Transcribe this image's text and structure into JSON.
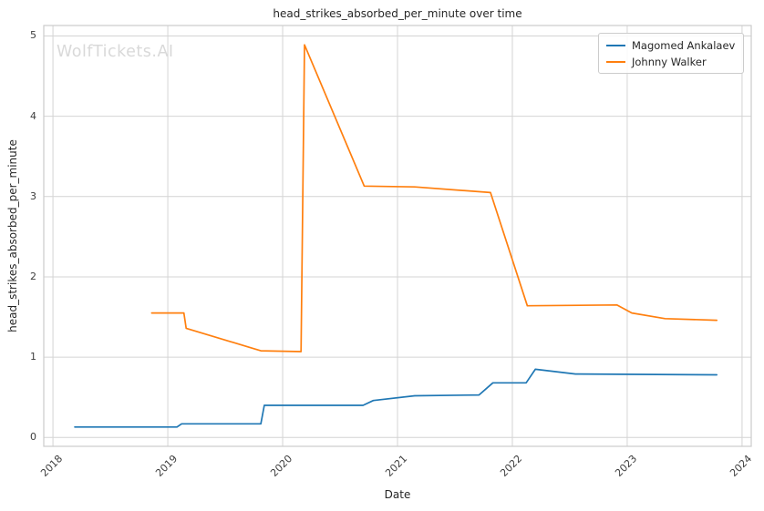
{
  "watermark": "WolfTickets.AI",
  "colors": {
    "grid": "#d4d4d4",
    "spine": "#cccccc",
    "title_text": "#262626",
    "tick_text": "#3d3d3d",
    "watermark_text": "#d9d9d9",
    "legend_border": "#cccccc"
  },
  "chart_data": {
    "type": "line",
    "title": "head_strikes_absorbed_per_minute over time",
    "xlabel": "Date",
    "ylabel": "head_strikes_absorbed_per_minute",
    "x_ticks": [
      2018,
      2019,
      2020,
      2021,
      2022,
      2023,
      2024
    ],
    "x_tick_labels": [
      "2018",
      "2019",
      "2020",
      "2021",
      "2022",
      "2023",
      "2024"
    ],
    "y_ticks": [
      0,
      1,
      2,
      3,
      4,
      5
    ],
    "y_tick_labels": [
      "0",
      "1",
      "2",
      "3",
      "4",
      "5"
    ],
    "xlim": [
      2017.92,
      2024.08
    ],
    "ylim": [
      -0.11,
      5.13
    ],
    "grid": true,
    "legend_position": "upper right",
    "series": [
      {
        "name": "Magomed Ankalaev",
        "color": "#1f77b4",
        "x": [
          2018.19,
          2019.08,
          2019.12,
          2019.81,
          2019.84,
          2020.7,
          2020.79,
          2021.15,
          2021.71,
          2021.83,
          2022.12,
          2022.2,
          2022.55,
          2023.78
        ],
        "y": [
          0.13,
          0.13,
          0.17,
          0.17,
          0.4,
          0.4,
          0.46,
          0.52,
          0.53,
          0.68,
          0.68,
          0.85,
          0.79,
          0.78
        ]
      },
      {
        "name": "Johnny Walker",
        "color": "#ff7f0e",
        "x": [
          2018.86,
          2019.14,
          2019.16,
          2019.81,
          2020.16,
          2020.19,
          2020.71,
          2021.15,
          2021.81,
          2022.13,
          2022.91,
          2023.04,
          2023.33,
          2023.78
        ],
        "y": [
          1.55,
          1.55,
          1.36,
          1.08,
          1.07,
          4.89,
          3.13,
          3.12,
          3.05,
          1.64,
          1.65,
          1.55,
          1.48,
          1.46
        ]
      }
    ]
  }
}
